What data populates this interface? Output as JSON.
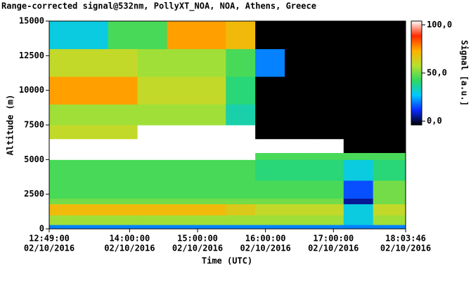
{
  "chart_data": {
    "type": "heatmap",
    "title": "Range-corrected signal@532nm, PollyXT_NOA, NOA, Athens, Greece",
    "x_label": "Time (UTC)",
    "y_label": "Altitude (m)",
    "colorbar_label": "Signal [a.u.]",
    "date": "02/10/2016",
    "xlim": [
      "12:49:00",
      "18:03:46"
    ],
    "xticks": [
      "12:49:00",
      "14:00:00",
      "15:00:00",
      "16:00:00",
      "17:00:00",
      "18:03:46"
    ],
    "ylim": [
      0,
      15000
    ],
    "yticks": [
      0,
      2500,
      5000,
      7500,
      10000,
      12500,
      15000
    ],
    "clim": [
      -4,
      104
    ],
    "cticks": [
      {
        "value": 0,
        "label": "0,0"
      },
      {
        "value": 50,
        "label": "50,0"
      },
      {
        "value": 100,
        "label": "100,0"
      }
    ],
    "colormap": [
      "#000000",
      "#0a2aff",
      "#00c8ff",
      "#30d860",
      "#b8e030",
      "#ffb000",
      "#ff2a00",
      "#ffffff"
    ],
    "x_bins": [
      "12:49:00",
      "13:15:00",
      "13:41:00",
      "14:07:00",
      "14:33:00",
      "14:59:00",
      "15:25:00",
      "15:51:00",
      "16:17:00",
      "16:43:00",
      "17:09:00",
      "17:35:00",
      "18:03:46"
    ],
    "y_bins": [
      0,
      300,
      1000,
      1800,
      2200,
      3500,
      5000,
      5500,
      6500,
      7500,
      9000,
      11000,
      13000,
      15000
    ],
    "z": [
      [
        20,
        20,
        20,
        20,
        20,
        20,
        20,
        20,
        20,
        20,
        20,
        20
      ],
      [
        55,
        55,
        55,
        55,
        55,
        55,
        55,
        55,
        55,
        55,
        30,
        55
      ],
      [
        70,
        70,
        70,
        70,
        70,
        70,
        65,
        60,
        60,
        60,
        30,
        60
      ],
      [
        50,
        50,
        50,
        50,
        50,
        50,
        50,
        50,
        50,
        50,
        5,
        50
      ],
      [
        45,
        45,
        45,
        45,
        45,
        45,
        45,
        45,
        45,
        45,
        15,
        50
      ],
      [
        45,
        45,
        45,
        45,
        45,
        45,
        45,
        40,
        40,
        40,
        30,
        40
      ],
      [
        105,
        105,
        105,
        105,
        105,
        105,
        105,
        45,
        45,
        45,
        45,
        45
      ],
      [
        105,
        105,
        105,
        105,
        105,
        105,
        105,
        105,
        105,
        105,
        -4,
        -4
      ],
      [
        60,
        60,
        60,
        105,
        105,
        105,
        105,
        -4,
        -4,
        -4,
        -4,
        -4
      ],
      [
        55,
        55,
        55,
        55,
        55,
        55,
        35,
        -4,
        -4,
        -4,
        -4,
        -4
      ],
      [
        75,
        75,
        75,
        60,
        60,
        60,
        40,
        -4,
        -4,
        -4,
        -4,
        -4
      ],
      [
        60,
        60,
        60,
        55,
        55,
        55,
        45,
        20,
        -4,
        -4,
        -4,
        -4
      ],
      [
        30,
        30,
        45,
        45,
        75,
        75,
        70,
        -4,
        -4,
        -4,
        -4,
        -4
      ]
    ]
  }
}
